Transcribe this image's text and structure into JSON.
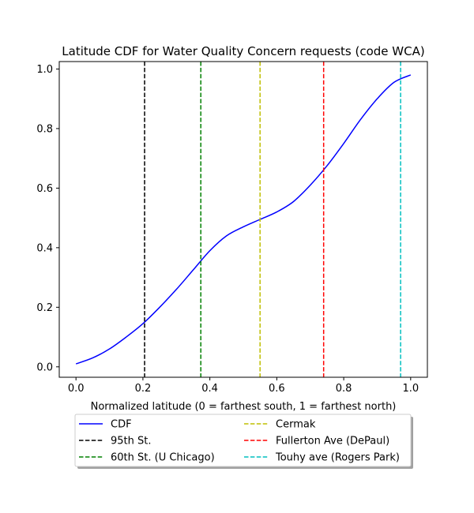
{
  "chart_data": {
    "type": "line",
    "title": "Latitude CDF for Water Quality Concern  requests (code WCA)",
    "xlabel": "Normalized latitude (0 = farthest south, 1 = farthest north)",
    "ylabel": "",
    "xlim": [
      -0.05,
      1.05
    ],
    "ylim": [
      -0.035,
      1.025
    ],
    "xticks": [
      0.0,
      0.2,
      0.4,
      0.6,
      0.8,
      1.0
    ],
    "xtick_labels": [
      "0.0",
      "0.2",
      "0.4",
      "0.6",
      "0.8",
      "1.0"
    ],
    "yticks": [
      0.0,
      0.2,
      0.4,
      0.6,
      0.8,
      1.0
    ],
    "ytick_labels": [
      "0.0",
      "0.2",
      "0.4",
      "0.6",
      "0.8",
      "1.0"
    ],
    "grid": false,
    "legend_placement": "below plot, two columns",
    "series": [
      {
        "name": "CDF",
        "color": "#0000ff",
        "style": "solid",
        "x": [
          0.0,
          0.05,
          0.1,
          0.15,
          0.2,
          0.25,
          0.3,
          0.35,
          0.4,
          0.45,
          0.5,
          0.55,
          0.6,
          0.65,
          0.7,
          0.75,
          0.8,
          0.85,
          0.9,
          0.95,
          1.0
        ],
        "y": [
          0.01,
          0.03,
          0.06,
          0.1,
          0.145,
          0.2,
          0.26,
          0.325,
          0.39,
          0.44,
          0.47,
          0.495,
          0.52,
          0.555,
          0.61,
          0.675,
          0.75,
          0.83,
          0.9,
          0.955,
          0.98
        ]
      }
    ],
    "vlines": [
      {
        "name": "95th St.",
        "x": 0.205,
        "color": "#000000"
      },
      {
        "name": "60th St. (U Chicago)",
        "x": 0.373,
        "color": "#008000"
      },
      {
        "name": "Cermak",
        "x": 0.55,
        "color": "#bfbf00"
      },
      {
        "name": "Fullerton Ave (DePaul)",
        "x": 0.74,
        "color": "#ff0000"
      },
      {
        "name": "Touhy ave (Rogers Park)",
        "x": 0.97,
        "color": "#00bfbf"
      }
    ]
  }
}
